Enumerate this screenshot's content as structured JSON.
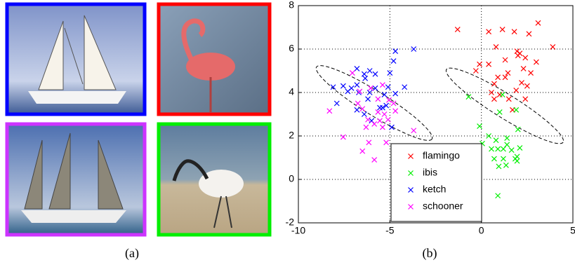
{
  "captions": [
    "(a)",
    "(b)"
  ],
  "chart_data": {
    "type": "scatter",
    "xlim": [
      -10,
      5
    ],
    "ylim": [
      -2,
      8
    ],
    "xticks": [
      -10,
      -5,
      0,
      5
    ],
    "yticks": [
      -2,
      0,
      2,
      4,
      6,
      8
    ],
    "grid": true,
    "legend": "lower center",
    "marker": "x",
    "series": [
      {
        "name": "flamingo",
        "color": "#ff0000",
        "x": [
          -1.3,
          0.4,
          1.15,
          1.8,
          3.1,
          2.6,
          3.9,
          0.8,
          2.1,
          2.0,
          2.4,
          1.95,
          3.0,
          -0.1,
          0.4,
          1.3,
          2.3,
          1.45,
          0.9,
          1.3,
          0.7,
          2.2,
          2.5,
          1.9,
          0.55,
          1.0,
          1.5,
          2.4,
          -0.3,
          2.7,
          1.7,
          0.7
        ],
        "y": [
          6.9,
          6.8,
          6.9,
          6.8,
          7.2,
          6.7,
          6.1,
          6.1,
          5.8,
          5.7,
          5.6,
          5.9,
          5.4,
          5.3,
          5.3,
          5.5,
          5.1,
          4.9,
          4.7,
          4.7,
          4.4,
          4.45,
          4.3,
          4.1,
          4.0,
          3.9,
          3.7,
          3.7,
          5.0,
          4.9,
          3.2,
          3.7
        ]
      },
      {
        "name": "ibis",
        "color": "#00ee00",
        "x": [
          -0.7,
          1.15,
          1.0,
          1.9,
          -0.1,
          2.0,
          0.4,
          1.4,
          0.05,
          0.8,
          1.4,
          2.1,
          0.55,
          1.2,
          1.65,
          1.95,
          0.7,
          1.2,
          1.85,
          0.95,
          1.35,
          1.95,
          0.9,
          0.9
        ],
        "y": [
          3.8,
          3.9,
          3.1,
          3.2,
          2.45,
          2.3,
          2.0,
          1.9,
          1.65,
          1.8,
          1.6,
          1.45,
          1.4,
          1.4,
          1.35,
          1.05,
          0.95,
          0.95,
          0.95,
          0.6,
          0.65,
          0.85,
          -0.75,
          1.4
        ]
      },
      {
        "name": "ketch",
        "color": "#0000ff",
        "x": [
          -3.7,
          -4.7,
          -4.8,
          -6.8,
          -6.1,
          -5.0,
          -6.4,
          -5.8,
          -6.35,
          -8.1,
          -7.55,
          -7.1,
          -6.8,
          -4.2,
          -5.8,
          -5.1,
          -7.3,
          -6.7,
          -6.1,
          -5.3,
          -4.7,
          -7.9,
          -6.2,
          -6.8,
          -5.2,
          -5.55,
          -6.4,
          -6.0,
          -4.9,
          -5.4
        ],
        "y": [
          6.0,
          5.9,
          5.45,
          5.1,
          5.0,
          4.9,
          4.85,
          4.85,
          4.65,
          4.25,
          4.3,
          4.2,
          4.35,
          4.25,
          4.2,
          4.25,
          4.05,
          4.0,
          4.0,
          3.9,
          3.95,
          3.5,
          3.7,
          3.2,
          3.4,
          3.3,
          3.0,
          2.7,
          2.4,
          3.3
        ]
      },
      {
        "name": "schooner",
        "color": "#ff00ff",
        "x": [
          -7.05,
          -6.05,
          -5.4,
          -6.65,
          -5.05,
          -5.65,
          -6.75,
          -4.8,
          -8.3,
          -6.5,
          -5.65,
          -5.3,
          -6.2,
          -5.55,
          -5.1,
          -6.3,
          -5.85,
          -3.7,
          -7.55,
          -6.15,
          -5.2,
          -6.5,
          -5.85,
          -4.7,
          -5.4
        ],
        "y": [
          4.9,
          4.2,
          4.35,
          4.05,
          3.65,
          3.7,
          3.5,
          3.5,
          3.15,
          3.25,
          3.1,
          3.0,
          2.75,
          2.7,
          2.75,
          2.4,
          2.55,
          2.25,
          1.95,
          1.7,
          1.7,
          1.3,
          0.9,
          3.15,
          2.4
        ]
      }
    ]
  }
}
